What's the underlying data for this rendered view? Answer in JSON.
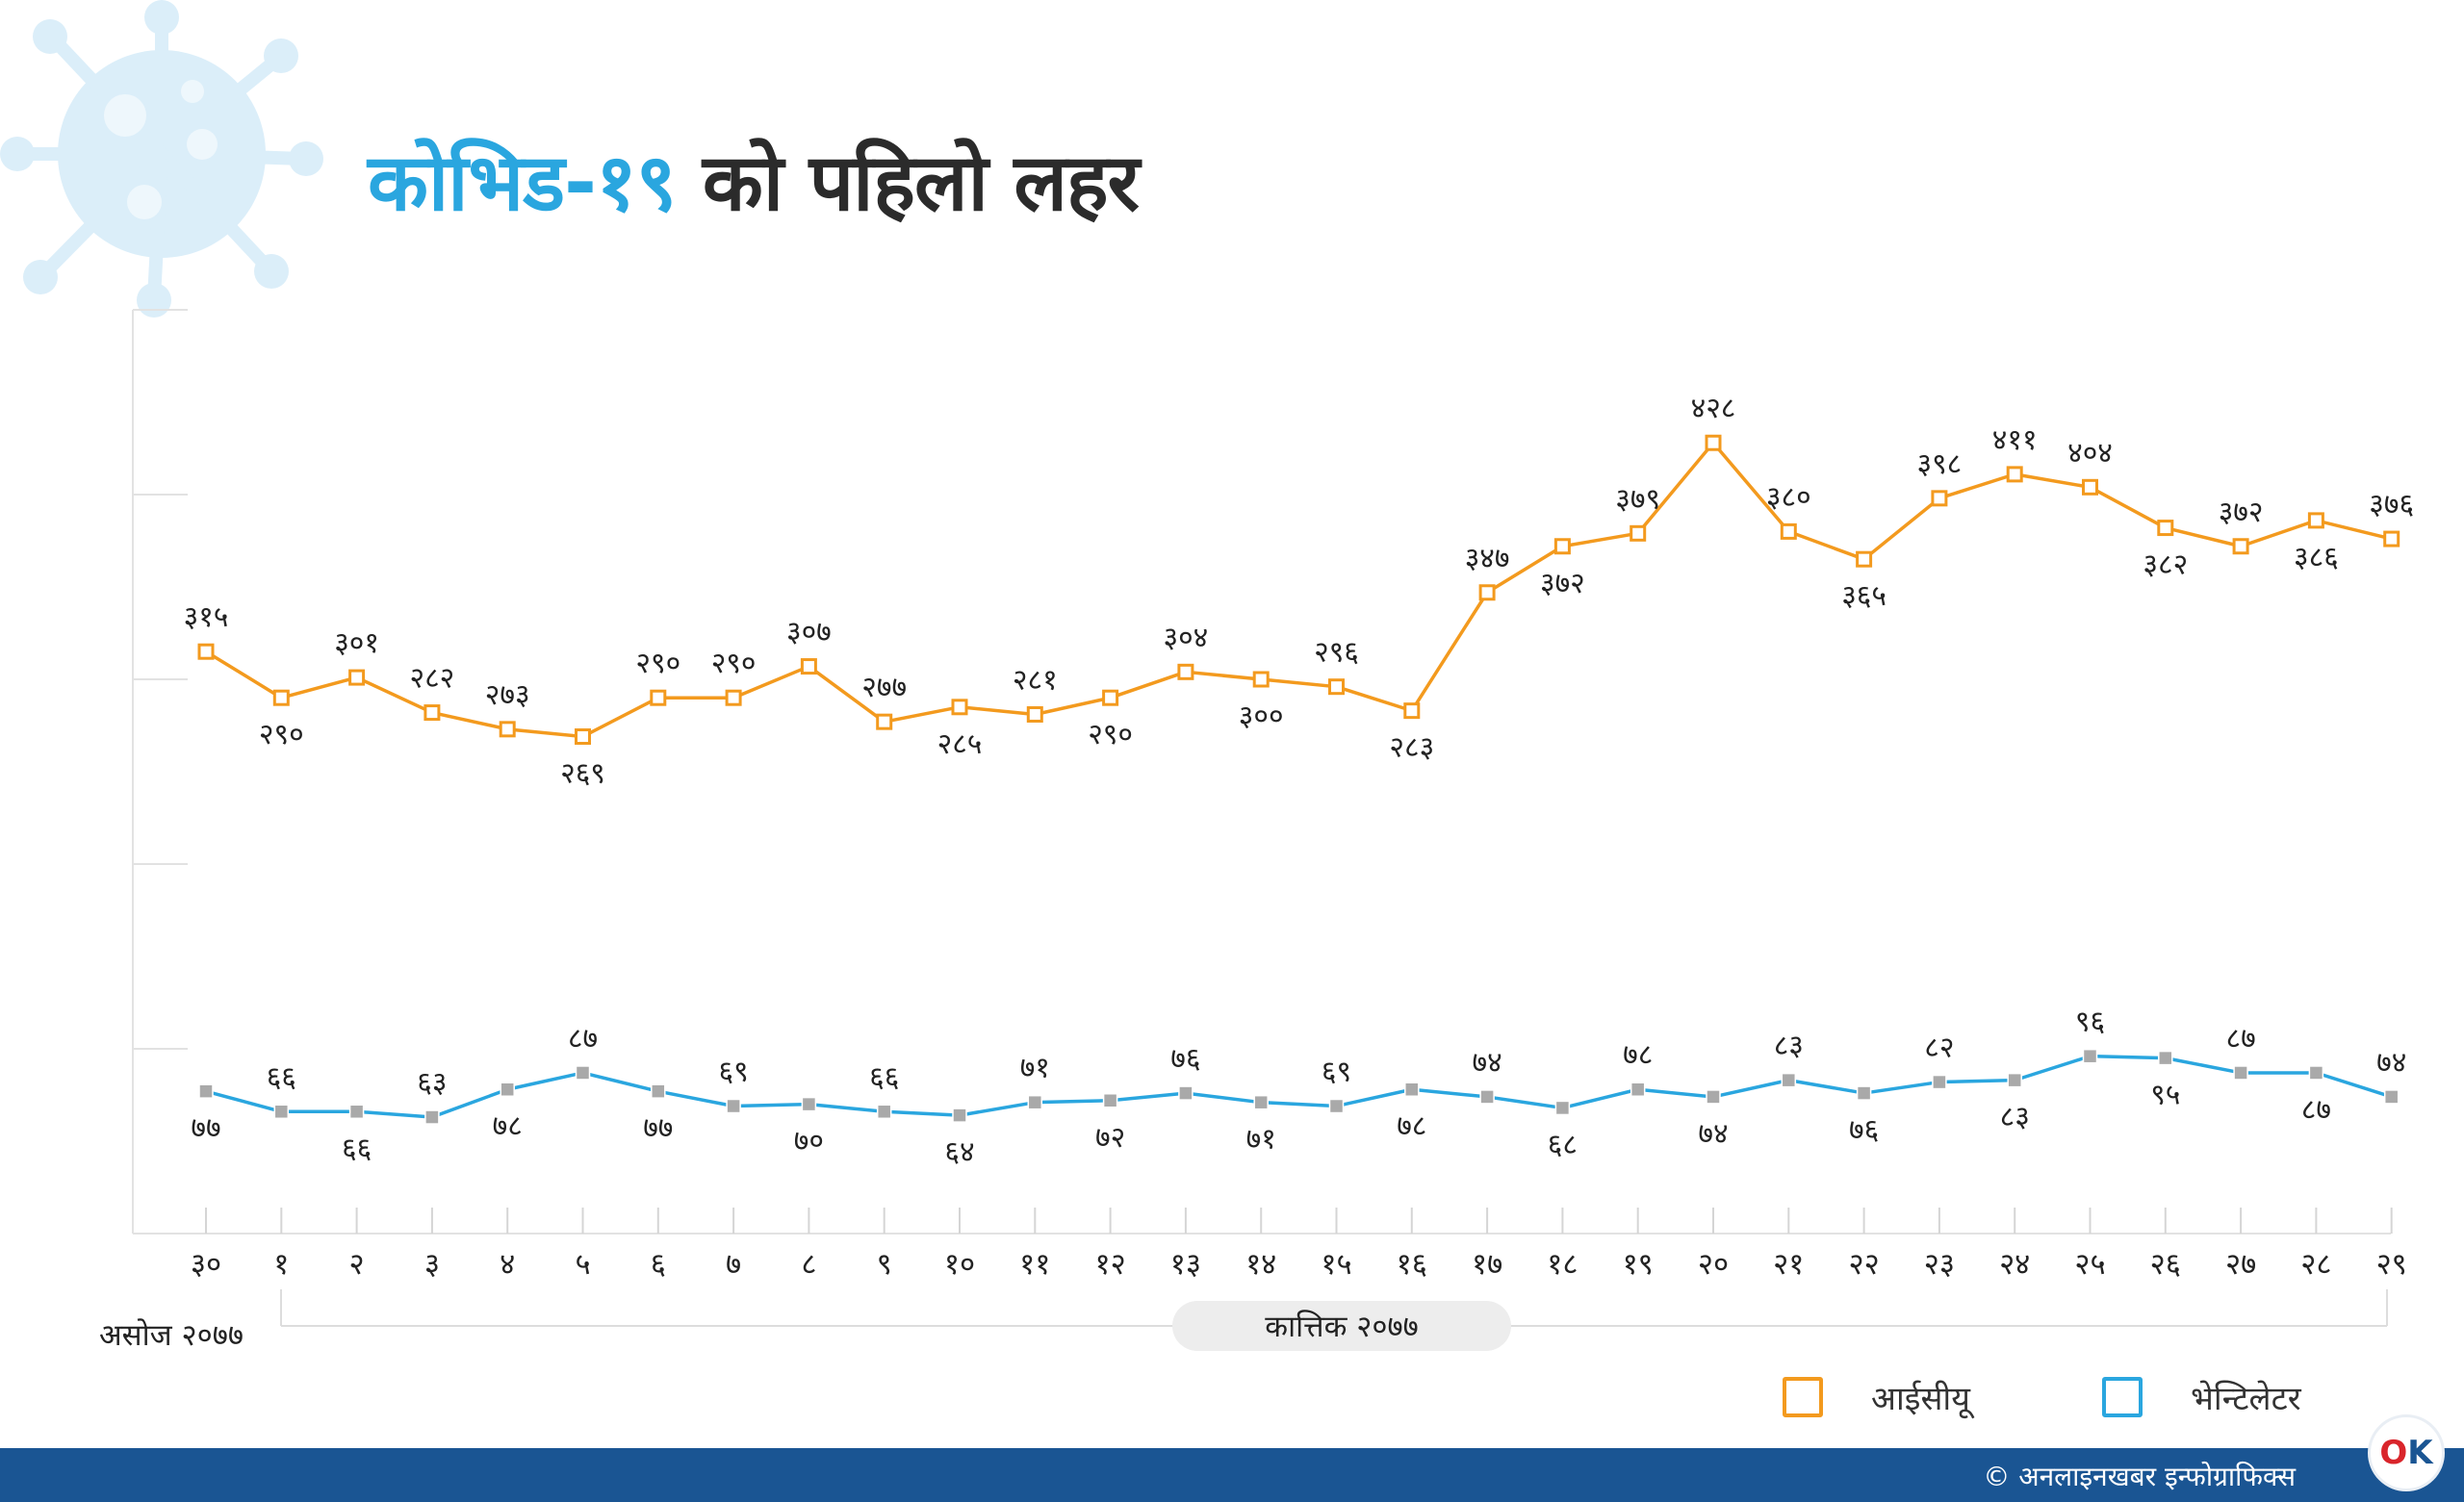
{
  "title": {
    "part1": "कोभिड-१९",
    "part2": "को पहिलो लहर"
  },
  "chart_data": {
    "type": "line",
    "title": "कोभिड-१९ को पहिलो लहर",
    "categories": [
      "३०",
      "१",
      "२",
      "३",
      "४",
      "५",
      "६",
      "७",
      "८",
      "९",
      "१०",
      "११",
      "१२",
      "१३",
      "१४",
      "१५",
      "१६",
      "१७",
      "१८",
      "१९",
      "२०",
      "२१",
      "२२",
      "२३",
      "२४",
      "२५",
      "२६",
      "२७",
      "२८",
      "२९"
    ],
    "first_category_sublabel": "असोज २०७७",
    "group_label": "कात्तिक २०७७",
    "ylim": [
      0,
      560
    ],
    "grid": false,
    "legend_position": "bottom-right",
    "series": [
      {
        "name": "आईसीयू",
        "color": "#f39a1e",
        "values": [
          315,
          290,
          301,
          282,
          273,
          269,
          290,
          290,
          307,
          277,
          285,
          281,
          290,
          304,
          300,
          296,
          283,
          347,
          372,
          379,
          428,
          380,
          365,
          398,
          411,
          404,
          382,
          372,
          386,
          376
        ],
        "labels": [
          "३१५",
          "२९०",
          "३०१",
          "२८२",
          "२७३",
          "२६९",
          "२९०",
          "२९०",
          "३०७",
          "२७७",
          "२८५",
          "२८१",
          "२९०",
          "३०४",
          "३००",
          "२९६",
          "२८३",
          "३४७",
          "३७२",
          "३७९",
          "४२८",
          "३८०",
          "३६५",
          "३९८",
          "४११",
          "४०४",
          "३८२",
          "३७२",
          "३८६",
          "३७६"
        ]
      },
      {
        "name": "भेन्टिलेटर",
        "color": "#2aa6df",
        "values": [
          77,
          66,
          66,
          63,
          78,
          87,
          77,
          69,
          70,
          66,
          64,
          71,
          72,
          76,
          71,
          69,
          78,
          74,
          68,
          78,
          74,
          83,
          76,
          82,
          83,
          96,
          95,
          87,
          87,
          74
        ],
        "labels": [
          "७७",
          "६६",
          "६६",
          "६३",
          "७८",
          "८७",
          "७७",
          "६९",
          "७०",
          "६६",
          "६४",
          "७१",
          "७२",
          "७६",
          "७१",
          "६९",
          "७८",
          "७४",
          "६८",
          "७८",
          "७४",
          "८३",
          "७६",
          "८२",
          "८३",
          "९६",
          "९५",
          "८७",
          "८७",
          "७४"
        ]
      }
    ]
  },
  "legend": {
    "icu": "आईसीयू",
    "ventilator": "भेन्टिलेटर"
  },
  "footer": {
    "credit": "© अनलाइनखबर इन्फोग्राफिक्स",
    "logo_o": "O",
    "logo_k": "K"
  }
}
